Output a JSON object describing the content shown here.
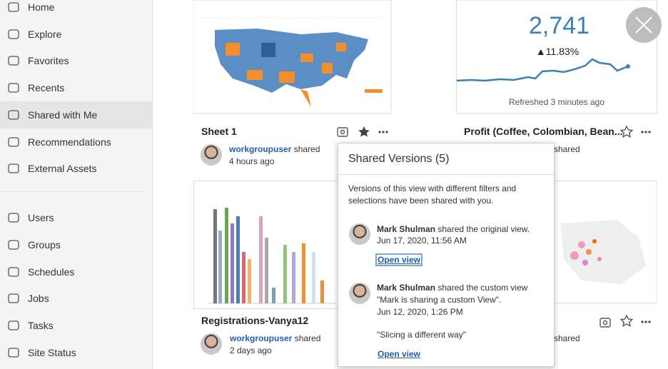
{
  "sidebar": {
    "items": [
      "Home",
      "Explore",
      "Favorites",
      "Recents",
      "Shared with Me",
      "Recommendations",
      "External Assets"
    ],
    "admin_items": [
      "Users",
      "Groups",
      "Schedules",
      "Jobs",
      "Tasks",
      "Site Status"
    ]
  },
  "cards": [
    {
      "title": "Sheet 1",
      "owner": "workgroupuser",
      "action": "shared",
      "time": "4 hours ago"
    },
    {
      "title": "Profit (Coffee, Colombian, Bean...",
      "action": "shared",
      "kpi": "2,741",
      "change": "▲11.83%",
      "refreshed": "Refreshed 3 minutes ago"
    },
    {
      "title": "Registrations-Vanya12",
      "owner": "workgroupuser",
      "action": "shared",
      "time": "2 days ago"
    },
    {
      "action": "shared"
    }
  ],
  "popup": {
    "title": "Shared Versions (5)",
    "description": [
      "Versions of this view with different filters and",
      "selections have been shared with you."
    ],
    "versions": [
      {
        "author": "Mark Shulman",
        "action": "shared the original view.",
        "date": "Jun 17, 2020, 11:56 AM",
        "link": "Open view"
      },
      {
        "author": "Mark Shulman",
        "action": "shared the custom view",
        "view_name": "\"Mark is sharing a custom View\".",
        "date": "Jun 12, 2020, 1:26 PM",
        "note": "\"Slicing a different way\"",
        "link": "Open view"
      }
    ]
  }
}
